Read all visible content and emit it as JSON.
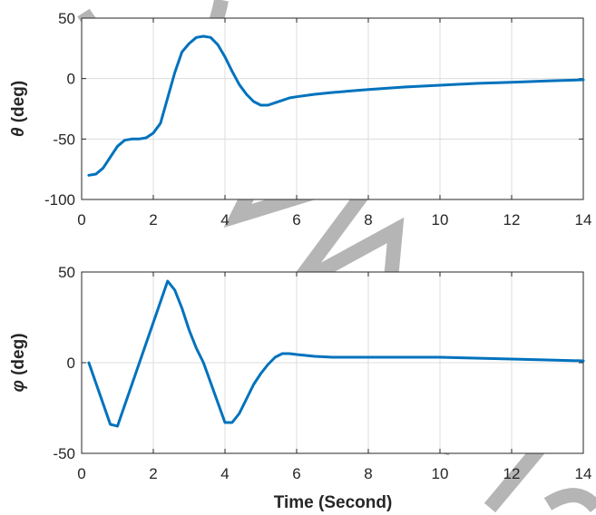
{
  "figure": {
    "xlabel": "Time  (Second)",
    "line_color": "#0072bd"
  },
  "chart_data": [
    {
      "type": "line",
      "xlim": [
        0,
        14
      ],
      "ylim": [
        -100,
        50
      ],
      "xticks": [
        0,
        2,
        4,
        6,
        8,
        10,
        12,
        14
      ],
      "yticks": [
        -100,
        -50,
        0,
        50
      ],
      "ylabel_symbol": "θ",
      "ylabel_unit": "(deg)",
      "xlabel": "",
      "grid": true,
      "series": [
        {
          "x": [
            0.2,
            0.4,
            0.6,
            0.8,
            1.0,
            1.2,
            1.4,
            1.6,
            1.8,
            2.0,
            2.2,
            2.4,
            2.6,
            2.8,
            3.0,
            3.2,
            3.4,
            3.6,
            3.8,
            4.0,
            4.2,
            4.4,
            4.6,
            4.8,
            5.0,
            5.2,
            5.4,
            5.6,
            5.8,
            6.0,
            6.5,
            7.0,
            8.0,
            9.0,
            10.0,
            11.0,
            12.0,
            13.0,
            14.0
          ],
          "y": [
            -80,
            -79,
            -74,
            -65,
            -56,
            -51,
            -50,
            -50,
            -49,
            -45,
            -37,
            -16,
            5,
            22,
            29,
            34,
            35,
            34,
            28,
            18,
            6,
            -5,
            -13,
            -19,
            -22,
            -22,
            -20,
            -18,
            -16,
            -15,
            -13,
            -11.5,
            -9,
            -7,
            -5.5,
            -4,
            -3,
            -2,
            -1
          ]
        }
      ]
    },
    {
      "type": "line",
      "xlim": [
        0,
        14
      ],
      "ylim": [
        -50,
        50
      ],
      "xticks": [
        0,
        2,
        4,
        6,
        8,
        10,
        12,
        14
      ],
      "yticks": [
        -50,
        0,
        50
      ],
      "ylabel_symbol": "φ",
      "ylabel_unit": "(deg)",
      "xlabel": "Time  (Second)",
      "grid": true,
      "series": [
        {
          "x": [
            0.2,
            0.8,
            1.0,
            2.4,
            2.6,
            2.8,
            3.0,
            3.2,
            3.4,
            4.0,
            4.2,
            4.4,
            4.6,
            4.8,
            5.0,
            5.2,
            5.4,
            5.6,
            5.8,
            6.0,
            6.5,
            7.0,
            8.0,
            9.0,
            10.0,
            11.0,
            12.0,
            13.0,
            14.0
          ],
          "y": [
            0,
            -34,
            -35,
            45,
            40,
            30,
            18,
            8,
            0,
            -33,
            -33,
            -28,
            -20,
            -12,
            -6,
            -1,
            3,
            5,
            5,
            4.5,
            3.5,
            3,
            3,
            3,
            3,
            2.5,
            2,
            1.5,
            1
          ]
        }
      ]
    }
  ]
}
